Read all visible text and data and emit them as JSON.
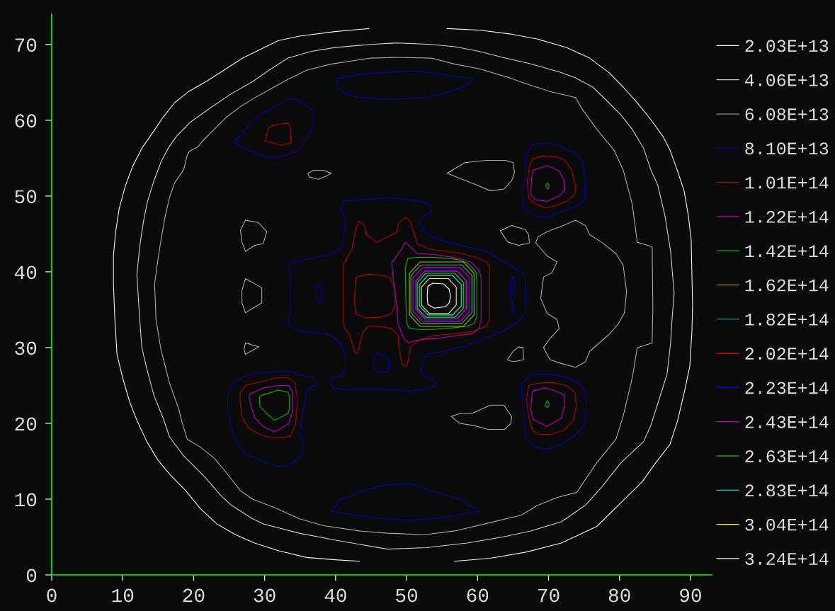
{
  "chart_data": {
    "type": "line",
    "xlim": [
      0,
      93
    ],
    "ylim": [
      0,
      74
    ],
    "xticks": [
      0,
      10,
      20,
      30,
      40,
      50,
      60,
      70,
      80,
      90
    ],
    "yticks": [
      0,
      10,
      20,
      30,
      40,
      50,
      60,
      70
    ],
    "legend": "right",
    "series": [
      {
        "name": "2.03E+13",
        "color": "#f0f0f0",
        "x": [
          44.7,
          39.9,
          34.9,
          31.9,
          29.3,
          26.9,
          24.6,
          21.9,
          19.3,
          17.3,
          15.7,
          14.4,
          12.7,
          11.4,
          10.4,
          9.5,
          9.0,
          8.7,
          8.7,
          8.9,
          9.2,
          10.0,
          11.0,
          12.0,
          13.4,
          15.0,
          16.7,
          18.9,
          20.9,
          23.3,
          25.9,
          28.6,
          31.9,
          35.9,
          39.9,
          43.4,
          null,
          55.7,
          60.2,
          64.5,
          68.5,
          72.5,
          75.8,
          78.5,
          80.5,
          82.5,
          84.4,
          86.1,
          87.1,
          88.1,
          89.1,
          89.7,
          90.1,
          90.2,
          90.3,
          90.2,
          89.9,
          89.2,
          88.2,
          87.1,
          85.1,
          83.2,
          80.5,
          76.8,
          71.8,
          66.8,
          61.8,
          56.7
        ],
        "values": [
          72.1,
          71.7,
          71.1,
          70.5,
          69.3,
          68.2,
          66.8,
          65.2,
          63.8,
          62.3,
          60.4,
          58.6,
          56.3,
          53.9,
          51.4,
          48.3,
          45.2,
          42.1,
          38.4,
          33.7,
          29.1,
          26.0,
          22.8,
          20.4,
          17.6,
          15.1,
          13.2,
          11.1,
          8.8,
          6.7,
          5.3,
          4.2,
          3.2,
          2.3,
          2.0,
          1.8,
          null,
          72.1,
          71.9,
          71.4,
          70.7,
          69.6,
          68.2,
          66.3,
          64.4,
          62.3,
          60.1,
          57.9,
          56.1,
          53.5,
          50.7,
          47.4,
          44.2,
          39.6,
          35.6,
          32.1,
          27.5,
          24.4,
          20.4,
          17.2,
          14.8,
          12.3,
          9.8,
          6.4,
          4.2,
          3.0,
          2.2,
          1.8
        ]
      },
      {
        "name": "4.06E+13",
        "color": "#cccccc",
        "x": [
          48.6,
          44.9,
          39.9,
          36.6,
          33.3,
          30.6,
          28.3,
          25.3,
          22.3,
          19.6,
          17.6,
          16.4,
          15.4,
          14.4,
          13.5,
          12.9,
          12.4,
          12.0,
          12.4,
          12.7,
          13.4,
          14.4,
          15.7,
          16.6,
          18.6,
          21.6,
          23.9,
          25.3,
          28.3,
          29.9,
          34.9,
          39.9,
          47.3,
          52.8,
          58.5,
          63.5,
          67.5,
          71.8,
          75.2,
          77.5,
          80.2,
          83.4,
          84.4,
          85.7,
          86.7,
          87.2,
          87.4,
          87.7,
          87.2,
          86.4,
          85.4,
          84.4,
          83.4,
          81.8,
          80.2,
          78.2,
          76.2,
          73.8,
          71.8,
          69.2,
          67.2,
          63.5,
          60.2,
          56.8,
          53.5,
          48.6,
          47.5
        ],
        "values": [
          70.2,
          70.0,
          69.6,
          69.1,
          68.2,
          66.6,
          65.1,
          63.5,
          61.6,
          59.8,
          57.9,
          56.3,
          54.5,
          52.0,
          49.3,
          46.5,
          43.3,
          39.6,
          33.7,
          30.0,
          27.2,
          23.7,
          20.7,
          18.2,
          15.7,
          12.9,
          10.4,
          9.2,
          7.4,
          6.7,
          5.5,
          4.6,
          3.4,
          3.6,
          4.2,
          5.0,
          5.8,
          7.0,
          9.2,
          11.6,
          14.8,
          17.6,
          19.7,
          23.5,
          26.5,
          30.6,
          33.7,
          37.2,
          42.7,
          47.4,
          51.4,
          53.5,
          56.3,
          58.8,
          60.7,
          62.6,
          64.4,
          65.6,
          66.3,
          67.0,
          67.5,
          68.3,
          69.1,
          69.7,
          70.0,
          70.2,
          70.1
        ]
      },
      {
        "name": "6.08E+13",
        "color": "#a8a8a8",
        "x": [
          48.6,
          44.9,
          39.3,
          35.9,
          33.3,
          30.6,
          28.3,
          26.6,
          24.6,
          22.9,
          21.3,
          20.6,
          19.4,
          19.1,
          18.6,
          17.3,
          16.6,
          16.0,
          15.4,
          14.9,
          14.5,
          14.7,
          15.4,
          16.6,
          17.9,
          18.4,
          19.1,
          20.9,
          22.9,
          24.6,
          26.6,
          28.3,
          31.6,
          34.9,
          38.3,
          43.3,
          47.3,
          52.5,
          56.8,
          61.8,
          66.2,
          68.5,
          71.2,
          74.0,
          75.2,
          76.8,
          79.5,
          80.5,
          81.8,
          82.5,
          84.6,
          84.7,
          84.6,
          82.5,
          81.8,
          80.5,
          79.2,
          76.8,
          74.8,
          73.8,
          70.2,
          67.2,
          64.5,
          60.2,
          56.8,
          53.5,
          48.6,
          47.5,
          null,
          39.4,
          38.3,
          36.9,
          36.1,
          36.3,
          37.6,
          38.6,
          39.4,
          39.1,
          null,
          27.3,
          29.1,
          30.3,
          29.8,
          28.6,
          27.3,
          26.8,
          26.6,
          27.3,
          27.8,
          null,
          27.3,
          29.6,
          29.6,
          27.3,
          26.8,
          26.8,
          27.3,
          28.0,
          null,
          27.3,
          29.2,
          27.3,
          27.1,
          27.3,
          27.9,
          null,
          55.7,
          58.2,
          61.2,
          64.0,
          65.0,
          65.2,
          64.8,
          63.7,
          61.8,
          59.5,
          55.7,
          56.5,
          null,
          63.2,
          64.8,
          66.7,
          67.2,
          67.3,
          65.8,
          64.3,
          63.2,
          63.7,
          null,
          68.5,
          69.8,
          71.8,
          73.8,
          75.2,
          75.8,
          77.5,
          79.5,
          80.5,
          81.0,
          80.7,
          79.8,
          78.5,
          77.5,
          75.8,
          75.2,
          73.8,
          71.8,
          70.2,
          69.3,
          70.2,
          71.5,
          71.2,
          69.8,
          68.9,
          69.3,
          70.5,
          71.2,
          69.8,
          68.2,
          68.5,
          68.9,
          null,
          64.2,
          65.0,
          65.8,
          66.4,
          66.5,
          65.5,
          64.7,
          64.2,
          64.4,
          null,
          56.3,
          57.5,
          59.2,
          61.8,
          63.7,
          64.8,
          64.7,
          63.8,
          61.5,
          59.5,
          57.5,
          56.3,
          56.7
        ],
        "values": [
          68.3,
          68.2,
          67.4,
          66.6,
          65.4,
          64.0,
          62.8,
          61.8,
          60.4,
          58.8,
          57.3,
          56.5,
          55.9,
          55.4,
          53.5,
          51.7,
          49.8,
          47.4,
          44.2,
          41.2,
          38.4,
          33.7,
          29.7,
          25.3,
          21.9,
          20.0,
          17.9,
          16.9,
          15.4,
          13.5,
          11.1,
          10.0,
          8.8,
          7.4,
          6.5,
          5.8,
          5.5,
          5.3,
          5.8,
          6.9,
          7.9,
          9.2,
          10.2,
          10.9,
          12.6,
          14.8,
          17.9,
          20.9,
          26.0,
          30.0,
          30.6,
          35.3,
          43.3,
          43.9,
          48.9,
          53.5,
          56.1,
          58.8,
          61.4,
          63.0,
          63.8,
          64.7,
          65.6,
          66.8,
          67.4,
          68.2,
          68.3,
          68.3,
          null,
          53.0,
          53.4,
          53.4,
          53.0,
          52.5,
          52.2,
          52.6,
          53.0,
          53.1,
          null,
          46.8,
          46.5,
          45.3,
          43.7,
          43.5,
          42.7,
          43.9,
          45.5,
          46.8,
          46.7,
          null,
          39.1,
          37.9,
          35.9,
          34.6,
          35.9,
          37.5,
          39.1,
          38.7,
          null,
          30.6,
          30.1,
          29.1,
          29.8,
          30.6,
          30.5,
          null,
          53.0,
          54.4,
          54.7,
          54.7,
          54.4,
          53.1,
          52.0,
          50.9,
          50.7,
          51.6,
          53.0,
          53.4,
          null,
          45.4,
          46.1,
          45.6,
          44.9,
          43.8,
          43.5,
          43.9,
          45.4,
          45.6,
          null,
          44.6,
          45.3,
          46.0,
          46.8,
          46.1,
          44.9,
          43.9,
          42.4,
          40.9,
          37.4,
          34.6,
          33.1,
          31.7,
          30.9,
          29.5,
          28.1,
          27.4,
          27.9,
          28.4,
          30.0,
          31.2,
          32.5,
          33.7,
          34.5,
          36.5,
          39.3,
          39.9,
          41.3,
          42.1,
          43.8,
          44.6,
          44.8,
          null,
          28.4,
          29.5,
          30.1,
          30.0,
          28.4,
          28.2,
          28.2,
          28.4,
          28.7,
          null,
          20.9,
          21.3,
          21.3,
          22.4,
          22.4,
          20.9,
          20.0,
          19.2,
          19.2,
          19.7,
          20.0,
          20.9,
          21.0
        ]
      },
      {
        "name": "8.10E+13",
        "color": "#0000b4",
        "x": [
          40.1,
          43.3,
          46.6,
          50.5,
          52.5,
          56.8,
          59.5,
          58.5,
          55.8,
          52.5,
          48.6,
          46.6,
          43.3,
          41.3,
          40.3,
          40.1,
          41.1,
          null,
          39.4,
          40.6,
          43.3,
          46.9,
          50.5,
          53.5,
          57.5,
          60.2,
          56.8,
          53.5,
          50.5,
          46.6,
          43.3,
          39.9,
          39.4,
          39.8,
          null,
          25.8,
          27.3,
          28.9,
          31.3,
          33.3,
          34.6,
          35.9,
          36.8,
          36.8,
          35.9,
          34.6,
          32.9,
          31.3,
          29.6,
          27.9,
          26.6,
          25.8,
          26.3,
          null,
          66.8,
          67.8,
          69.8,
          71.8,
          73.8,
          74.8,
          75.2,
          75.2,
          73.8,
          71.8,
          69.8,
          68.2,
          66.5,
          66.3,
          66.7,
          66.8,
          67.1,
          null,
          25.6,
          27.3,
          29.9,
          33.3,
          34.9,
          36.9,
          37.4,
          36.4,
          35.9,
          35.3,
          34.9,
          35.6,
          34.9,
          33.3,
          31.9,
          29.9,
          27.3,
          25.9,
          25.3,
          24.8,
          24.8,
          25.6,
          26.1,
          null,
          66.2,
          67.7,
          70.2,
          72.5,
          74.5,
          75.2,
          75.3,
          75.0,
          73.8,
          71.8,
          69.8,
          67.8,
          66.8,
          66.5,
          66.2,
          66.2,
          66.7,
          null,
          40.6,
          41.1,
          43.3,
          46.6,
          48.6,
          51.8,
          53.5,
          53.5,
          52.2,
          51.8,
          52.3,
          53.5,
          55.8,
          58.5,
          61.2,
          62.8,
          64.5,
          65.8,
          66.7,
          66.8,
          66.7,
          65.2,
          63.5,
          60.2,
          58.5,
          55.2,
          52.8,
          52.2,
          52.0,
          52.8,
          54.0,
          54.0,
          53.2,
          49.9,
          47.6,
          43.3,
          41.3,
          39.6,
          39.3,
          39.6,
          40.9,
          41.4,
          41.3,
          40.6,
          39.6,
          38.6,
          36.6,
          34.9,
          33.6,
          33.3,
          33.6,
          33.6,
          33.6,
          33.3,
          33.9,
          36.6,
          39.3,
          40.6,
          41.1,
          41.4,
          40.6,
          40.8,
          null,
          37.7,
          38.1,
          38.1,
          37.7,
          37.2,
          37.2,
          37.7,
          37.8,
          null,
          45.9,
          47.4,
          47.5,
          46.3,
          45.3,
          45.3,
          45.9,
          46.4,
          null,
          65.0,
          65.2,
          65.1,
          65.0,
          64.7,
          64.6,
          65.0,
          65.1
        ],
        "values": [
          65.5,
          66.0,
          66.3,
          66.5,
          66.4,
          65.8,
          65.5,
          64.6,
          63.7,
          63.0,
          62.8,
          62.8,
          63.0,
          63.5,
          64.6,
          65.5,
          65.7,
          null,
          8.4,
          9.8,
          10.9,
          11.9,
          12.0,
          11.1,
          10.0,
          8.4,
          7.8,
          7.4,
          7.2,
          7.4,
          7.8,
          8.3,
          8.4,
          8.8,
          null,
          57.1,
          58.8,
          60.4,
          61.8,
          62.8,
          62.8,
          61.9,
          61.2,
          59.1,
          57.6,
          55.9,
          55.4,
          54.9,
          55.4,
          56.0,
          56.5,
          57.1,
          57.6,
          null,
          55.4,
          56.8,
          57.0,
          56.5,
          55.6,
          54.5,
          52.0,
          49.5,
          48.6,
          47.9,
          47.2,
          47.4,
          48.3,
          50.2,
          52.6,
          55.4,
          55.8,
          null,
          25.3,
          26.3,
          26.7,
          26.9,
          26.4,
          26.0,
          25.1,
          24.7,
          24.1,
          20.9,
          18.8,
          16.7,
          15.4,
          14.4,
          14.3,
          14.9,
          16.0,
          17.6,
          19.7,
          21.9,
          23.7,
          25.3,
          25.6,
          null,
          25.3,
          26.5,
          26.5,
          26.1,
          25.1,
          24.1,
          21.9,
          19.7,
          18.5,
          17.2,
          16.6,
          16.9,
          18.2,
          20.9,
          23.5,
          25.3,
          25.7,
          null,
          48.1,
          49.3,
          49.5,
          49.7,
          49.7,
          49.3,
          48.9,
          48.0,
          47.2,
          46.6,
          45.5,
          44.7,
          43.9,
          43.3,
          42.7,
          41.8,
          40.9,
          40.2,
          39.6,
          36.5,
          34.4,
          33.1,
          32.1,
          30.9,
          30.3,
          29.5,
          29.1,
          28.1,
          26.9,
          26.1,
          25.6,
          25.0,
          24.6,
          24.2,
          24.5,
          24.6,
          24.4,
          24.7,
          25.3,
          26.0,
          26.4,
          27.2,
          29.1,
          30.6,
          31.4,
          31.8,
          32.0,
          32.2,
          32.8,
          33.7,
          34.6,
          38.4,
          39.6,
          40.5,
          41.3,
          41.8,
          42.3,
          43.0,
          44.2,
          47.0,
          48.1,
          48.5,
          null,
          38.4,
          37.4,
          36.2,
          35.8,
          36.5,
          37.7,
          38.4,
          38.1,
          null,
          29.3,
          28.8,
          26.9,
          26.7,
          27.2,
          28.4,
          29.3,
          29.1,
          null,
          39.5,
          38.6,
          35.6,
          34.5,
          35.6,
          38.4,
          39.5,
          39.2
        ]
      },
      {
        "name": "1.01E+14",
        "color": "#b40000",
        "x": [
          41.1,
          42.3,
          42.8,
          43.3,
          44.1,
          44.3,
          45.8,
          47.3,
          48.6,
          48.9,
          49.8,
          50.5,
          51.2,
          51.5,
          53.2,
          55.5,
          57.8,
          59.8,
          61.3,
          61.7,
          61.7,
          61.2,
          59.2,
          56.5,
          53.8,
          51.5,
          50.5,
          50.2,
          49.9,
          49.4,
          48.9,
          48.8,
          47.9,
          46.3,
          44.6,
          43.9,
          43.6,
          43.1,
          42.8,
          42.4,
          41.9,
          41.3,
          41.1,
          41.1,
          41.1,
          41.5,
          null,
          42.9,
          44.6,
          46.3,
          47.6,
          48.4,
          48.4,
          47.8,
          46.3,
          44.3,
          42.9,
          42.6,
          42.8,
          42.9,
          43.4,
          null,
          30.6,
          31.9,
          33.3,
          33.6,
          33.7,
          32.3,
          31.3,
          30.1,
          30.3,
          30.6,
          31.0,
          null,
          67.7,
          69.2,
          71.2,
          72.2,
          73.2,
          73.8,
          73.7,
          72.5,
          71.2,
          69.7,
          68.2,
          67.2,
          67.0,
          67.3,
          67.7,
          68.2,
          null,
          27.3,
          29.9,
          31.6,
          33.3,
          34.3,
          34.6,
          34.4,
          33.6,
          32.6,
          30.9,
          29.3,
          27.6,
          26.8,
          26.5,
          26.6,
          27.3,
          28.1,
          null,
          67.2,
          68.5,
          70.5,
          72.5,
          73.7,
          73.9,
          73.5,
          72.2,
          70.2,
          68.5,
          67.7,
          67.2,
          66.9,
          67.2,
          67.6
        ],
        "values": [
          41.0,
          43.0,
          45.5,
          46.7,
          46.1,
          44.9,
          43.9,
          44.6,
          45.2,
          46.5,
          47.2,
          46.7,
          44.6,
          43.7,
          43.0,
          42.7,
          42.4,
          41.9,
          41.3,
          40.5,
          33.7,
          32.8,
          32.1,
          31.8,
          31.6,
          30.9,
          30.0,
          28.1,
          27.5,
          27.8,
          30.0,
          31.6,
          32.5,
          32.8,
          32.8,
          32.1,
          31.2,
          29.3,
          29.2,
          30.3,
          31.8,
          32.5,
          33.1,
          36.2,
          41.0,
          41.6,
          null,
          39.3,
          39.7,
          39.5,
          39.3,
          37.7,
          35.6,
          34.4,
          34.0,
          33.9,
          34.4,
          36.2,
          38.4,
          39.3,
          39.4,
          null,
          59.1,
          59.5,
          59.6,
          59.1,
          57.0,
          56.7,
          57.0,
          57.2,
          58.2,
          59.1,
          59.2,
          null,
          54.9,
          55.3,
          55.1,
          54.8,
          53.5,
          51.4,
          50.2,
          49.3,
          48.8,
          48.4,
          48.9,
          49.7,
          52.0,
          53.9,
          54.9,
          55.0,
          null,
          25.0,
          25.6,
          26.0,
          26.0,
          25.3,
          23.2,
          20.0,
          18.3,
          18.1,
          18.1,
          18.5,
          19.5,
          20.9,
          23.2,
          24.1,
          25.0,
          25.2,
          null,
          25.0,
          25.3,
          25.4,
          25.0,
          24.1,
          22.3,
          20.4,
          19.1,
          18.5,
          18.6,
          19.1,
          20.9,
          23.2,
          25.0,
          25.1
        ]
      },
      {
        "name": "1.22E+14",
        "color": "#b400b4",
        "x": [
          47.9,
          48.6,
          49.3,
          49.8,
          50.5,
          51.5,
          53.8,
          57.2,
          59.2,
          60.2,
          60.5,
          60.5,
          60.2,
          59.2,
          57.2,
          54.5,
          52.5,
          51.2,
          50.3,
          49.6,
          48.8,
          48.6,
          48.1,
          47.9,
          48.1,
          null,
          67.8,
          69.8,
          71.5,
          72.2,
          72.2,
          71.5,
          69.8,
          68.2,
          67.5,
          67.6,
          67.8,
          68.4,
          null,
          67.7,
          69.5,
          71.5,
          72.2,
          72.3,
          71.8,
          69.8,
          67.8,
          67.5,
          67.7,
          68.2,
          null,
          27.9,
          29.9,
          31.9,
          33.4,
          33.9,
          33.9,
          33.4,
          31.9,
          31.3,
          29.9,
          28.6,
          28.1,
          27.8,
          27.9,
          28.5
        ],
        "values": [
          41.2,
          42.1,
          43.0,
          43.9,
          43.3,
          42.4,
          42.3,
          41.8,
          41.2,
          40.2,
          39.3,
          33.7,
          32.5,
          31.8,
          31.6,
          31.2,
          31.1,
          30.9,
          30.6,
          31.2,
          33.1,
          35.6,
          39.3,
          41.2,
          41.5,
          null,
          53.4,
          54.0,
          53.3,
          52.0,
          50.7,
          50.0,
          49.3,
          49.5,
          50.2,
          52.3,
          53.4,
          53.6,
          null,
          24.2,
          24.7,
          24.1,
          23.7,
          22.5,
          20.7,
          19.6,
          20.5,
          21.9,
          24.2,
          24.4,
          null,
          23.9,
          24.7,
          25.0,
          25.0,
          24.1,
          21.6,
          20.0,
          19.1,
          18.9,
          19.5,
          20.7,
          22.3,
          23.5,
          23.9,
          24.1
        ]
      },
      {
        "name": "1.42E+14",
        "color": "#00b400",
        "x": [
          50.2,
          51.5,
          53.8,
          55.5,
          57.2,
          58.5,
          59.3,
          59.8,
          59.9,
          59.9,
          59.5,
          58.5,
          56.5,
          53.8,
          51.5,
          50.3,
          50.0,
          49.9,
          49.8,
          50.2,
          50.6,
          null,
          29.6,
          31.3,
          31.9,
          33.3,
          33.5,
          33.5,
          33.3,
          31.4,
          30.3,
          29.3,
          29.3,
          29.6,
          30.1,
          null,
          69.8,
          70.1,
          69.9,
          69.6,
          69.8,
          69.9,
          null,
          69.8,
          70.1,
          69.9,
          69.5,
          69.8,
          69.9
        ],
        "values": [
          41.8,
          41.9,
          41.9,
          41.8,
          41.6,
          41.2,
          40.5,
          39.9,
          38.6,
          34.0,
          33.2,
          32.8,
          32.6,
          32.4,
          32.4,
          32.6,
          33.4,
          36.2,
          40.5,
          41.8,
          41.8,
          null,
          23.7,
          24.2,
          24.4,
          24.1,
          23.5,
          21.9,
          21.3,
          20.4,
          21.3,
          22.3,
          23.5,
          23.7,
          23.9,
          null,
          51.7,
          51.4,
          50.9,
          51.3,
          51.7,
          51.6,
          null,
          23.0,
          22.5,
          22.1,
          22.3,
          23.0,
          22.9
        ]
      },
      {
        "name": "1.62E+14",
        "color": "#b4b400",
        "x": [
          51.9,
          58.0,
          59.5,
          59.5,
          58.0,
          51.9,
          50.4,
          50.4,
          51.9,
          53.7
        ],
        "values": [
          41.3,
          41.3,
          39.8,
          34.3,
          32.8,
          32.8,
          34.3,
          39.8,
          41.3,
          41.3
        ]
      },
      {
        "name": "1.82E+14",
        "color": "#00b4b4",
        "x": [
          52.0,
          57.8,
          59.2,
          59.2,
          57.8,
          52.0,
          50.6,
          50.6,
          52.0,
          53.7
        ],
        "values": [
          40.9,
          40.9,
          39.5,
          34.6,
          33.2,
          33.2,
          34.6,
          39.5,
          40.9,
          40.9
        ]
      },
      {
        "name": "2.02E+14",
        "color": "#ff0000",
        "x": [
          52.3,
          57.5,
          58.9,
          58.9,
          57.5,
          52.3,
          50.9,
          50.9,
          52.3,
          53.9
        ],
        "values": [
          40.6,
          40.6,
          39.2,
          34.8,
          33.4,
          33.4,
          34.8,
          39.2,
          40.6,
          40.6
        ]
      },
      {
        "name": "2.23E+14",
        "color": "#0000ff",
        "x": [
          52.4,
          57.4,
          58.7,
          58.7,
          57.4,
          52.4,
          51.1,
          51.1,
          52.4,
          53.9
        ],
        "values": [
          40.4,
          40.4,
          39.1,
          34.9,
          33.6,
          33.6,
          34.9,
          39.1,
          40.4,
          40.4
        ]
      },
      {
        "name": "2.43E+14",
        "color": "#ff00ff",
        "x": [
          52.6,
          57.1,
          58.4,
          58.4,
          57.1,
          52.6,
          51.3,
          51.3,
          52.6,
          54.0
        ],
        "values": [
          40.1,
          40.1,
          38.8,
          35.1,
          33.8,
          33.8,
          35.1,
          38.8,
          40.1,
          40.1
        ]
      },
      {
        "name": "2.63E+14",
        "color": "#00ff00",
        "x": [
          52.7,
          56.8,
          58.0,
          58.0,
          56.8,
          52.7,
          51.5,
          51.5,
          52.7,
          53.9
        ],
        "values": [
          39.8,
          39.8,
          38.6,
          35.2,
          34.0,
          34.0,
          35.2,
          38.6,
          39.8,
          39.8
        ]
      },
      {
        "name": "2.83E+14",
        "color": "#00ffff",
        "x": [
          53.0,
          56.5,
          57.7,
          57.7,
          56.5,
          53.0,
          51.8,
          51.8,
          53.0,
          54.1
        ],
        "values": [
          39.5,
          39.5,
          38.3,
          35.5,
          34.3,
          34.3,
          35.5,
          38.3,
          39.5,
          39.5
        ]
      },
      {
        "name": "3.04E+14",
        "color": "#ffff00",
        "x": [
          53.2,
          55.9,
          57.0,
          57.0,
          55.9,
          53.2,
          52.1,
          52.1,
          53.2,
          54.0
        ],
        "values": [
          39.1,
          39.1,
          38.0,
          35.6,
          34.5,
          34.5,
          35.6,
          38.0,
          39.1,
          39.1
        ]
      },
      {
        "name": "3.24E+14",
        "color": "#ffffff",
        "x": [
          53.0,
          53.7,
          55.2,
          56.0,
          56.2,
          56.0,
          55.5,
          53.9,
          53.0,
          52.9,
          53.0,
          53.2
        ],
        "values": [
          38.1,
          38.5,
          38.4,
          37.7,
          36.7,
          35.9,
          35.4,
          35.2,
          35.7,
          36.8,
          38.1,
          38.2
        ]
      }
    ]
  }
}
